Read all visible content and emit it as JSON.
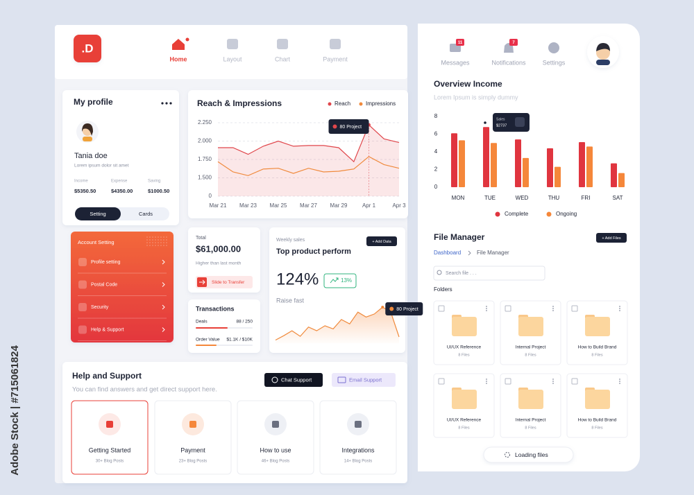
{
  "watermark": "Adobe Stock | #715061824",
  "logo": ".D",
  "nav": [
    "Home",
    "Layout",
    "Chart",
    "Payment"
  ],
  "top_right": [
    {
      "label": "Messages",
      "badge": 11
    },
    {
      "label": "Notifications",
      "badge": 7
    },
    {
      "label": "Settings"
    }
  ],
  "profile": {
    "title": "My profile",
    "name": "Tania doe",
    "bio": "Lorem ipsum dolor sit amet",
    "stats": [
      {
        "label": "Income",
        "value": "$5350.50"
      },
      {
        "label": "Expense",
        "value": "$4350.00"
      },
      {
        "label": "Saving",
        "value": "$1000.50"
      }
    ],
    "tabs": [
      "Setting",
      "Cards"
    ]
  },
  "account": {
    "title": "Account Setting",
    "items": [
      "Profile setting",
      "Postal Code",
      "Security",
      "Help & Support"
    ]
  },
  "total": {
    "label": "Total",
    "value": "$61,000.00",
    "note": "Higher than last month",
    "button": "Slide to Transfer"
  },
  "transactions": {
    "title": "Transactions",
    "rows": [
      {
        "label": "Deals",
        "value": "88 / 250"
      },
      {
        "label": "Order Value",
        "value": "$1.1K / $10K"
      }
    ]
  },
  "weekly": {
    "label": "Weekly sales",
    "button": "+ Add Data",
    "title": "Top product perform",
    "value": "124%",
    "badge": "13%",
    "note": "Raise fast"
  },
  "help": {
    "title": "Help and Support",
    "subtitle": "You can find answers and get direct support here.",
    "buttons": [
      "Chat Support",
      "Email Support"
    ],
    "cards": [
      {
        "title": "Getting Started",
        "note": "30+ Blog Posts"
      },
      {
        "title": "Payment",
        "note": "23+ Blog Posts"
      },
      {
        "title": "How to use",
        "note": "46+ Blog Posts"
      },
      {
        "title": "Integrations",
        "note": "14+ Blog Posts"
      }
    ]
  },
  "files": {
    "title": "File Manager",
    "button": "+ Add Files",
    "breadcrumb": [
      "Dashboard",
      "File Manager"
    ],
    "search": "Search file . . .",
    "folders_label": "Folders",
    "folders": [
      {
        "name": "UI/UX Reference",
        "count": "8 Files"
      },
      {
        "name": "Internal Project",
        "count": "8 Files"
      },
      {
        "name": "How to Build Brand",
        "count": "8 Files"
      },
      {
        "name": "UI/UX Reference",
        "count": "8 Files"
      },
      {
        "name": "Internal Project",
        "count": "8 Files"
      },
      {
        "name": "How to Build Brand",
        "count": "8 Files"
      }
    ],
    "loading": "Loading files"
  },
  "chart_data": [
    {
      "type": "line",
      "title": "Reach & Impressions",
      "categories": [
        "Mar 21",
        null,
        "Mar 23",
        null,
        "Mar 25",
        null,
        "Mar 27",
        null,
        "Mar 29",
        null,
        "Apr 1",
        null,
        "Apr 3"
      ],
      "series": [
        {
          "name": "Reach",
          "color": "#e0464b",
          "values": [
            1910,
            1910,
            1820,
            1930,
            2000,
            1930,
            1940,
            1940,
            1910,
            1720,
            2220,
            2030,
            1980
          ]
        },
        {
          "name": "Impressions",
          "color": "#f08a3c",
          "values": [
            1720,
            1580,
            1530,
            1620,
            1630,
            1560,
            1630,
            1580,
            1590,
            1620,
            1790,
            1680,
            1630
          ]
        }
      ],
      "ylim": [
        0,
        2250
      ],
      "yticks": [
        {
          "value": 0,
          "label": "0"
        },
        {
          "value": 1500,
          "label": "1.500"
        },
        {
          "value": 1750,
          "label": "1.750"
        },
        {
          "value": 2000,
          "label": "2.000"
        },
        {
          "value": 2250,
          "label": "2.250"
        }
      ],
      "axis_break": true,
      "grid": true,
      "area": true,
      "legend": "top-right",
      "annotation": "80 Project"
    },
    {
      "type": "area",
      "color": "#f08a3c",
      "values": [
        5,
        12,
        20,
        11,
        26,
        20,
        28,
        23,
        38,
        31,
        50,
        42,
        47,
        58,
        50,
        10
      ],
      "annotation": "80 Project"
    },
    {
      "type": "bar",
      "title": "Overview Income",
      "subtitle": "Lorem Ipsum is simply dummy",
      "categories": [
        "MON",
        "TUE",
        "WED",
        "THU",
        "FRI",
        "SAT"
      ],
      "series": [
        {
          "name": "Complete",
          "color": "#e0353f",
          "values": [
            6.1,
            6.8,
            5.4,
            4.4,
            5.1,
            2.7
          ]
        },
        {
          "name": "Ongoing",
          "color": "#f5873a",
          "values": [
            5.3,
            5.0,
            3.3,
            2.3,
            4.6,
            1.6
          ]
        }
      ],
      "ylim": [
        0,
        8
      ],
      "yticks": [
        0,
        2,
        4,
        6,
        8
      ],
      "legend": "bottom",
      "tooltip": {
        "label": "Sales",
        "value": "$2737"
      }
    }
  ]
}
